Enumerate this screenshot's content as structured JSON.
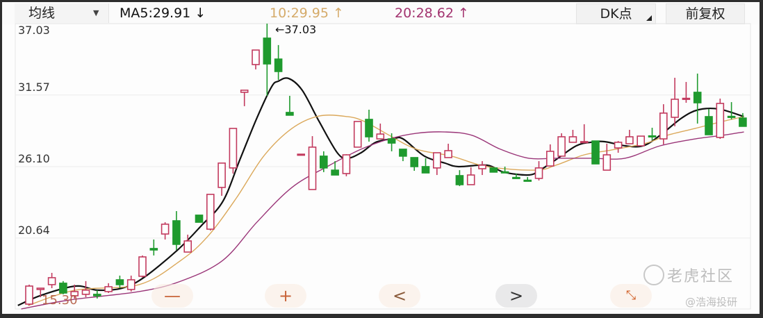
{
  "header": {
    "ma_select_label": "均线",
    "ma5": "MA5:29.91 ↓",
    "ma10": "10:29.95 ↑",
    "ma20": "20:28.62 ↑",
    "dk_button": "DK点",
    "adjust_button": "前复权"
  },
  "colors": {
    "up": "#c23a5e",
    "down": "#1f9a2e",
    "ma5": "#111111",
    "ma10": "#dba85a",
    "ma20": "#9a3578",
    "ma10_text": "#d5ab6a",
    "ma20_text": "#a2336f"
  },
  "controls": {
    "zoom_out": "—",
    "zoom_in": "+",
    "prev": "<",
    "next": ">",
    "expand_icon": "expand-arrows"
  },
  "watermark": {
    "brand": "老虎社区",
    "author": "@浩海投研"
  },
  "chart_data": {
    "type": "candlestick",
    "ylim": [
      15.22,
      37.03
    ],
    "y_ticks": [
      "37.03",
      "31.57",
      "26.10",
      "20.64"
    ],
    "grid": true,
    "high_annotation": "←37.03",
    "low_annotation": "15.30",
    "candles": [
      [
        15.59,
        17.08,
        15.49,
        16.97
      ],
      [
        16.71,
        16.81,
        16.12,
        16.81
      ],
      [
        17.08,
        17.98,
        16.81,
        17.61
      ],
      [
        17.19,
        17.35,
        16.34,
        16.44
      ],
      [
        16.23,
        17.08,
        16.02,
        16.55
      ],
      [
        16.34,
        17.35,
        16.12,
        16.66
      ],
      [
        16.34,
        16.66,
        16.02,
        16.23
      ],
      [
        16.55,
        17.19,
        16.44,
        16.92
      ],
      [
        17.45,
        17.77,
        16.81,
        17.08
      ],
      [
        16.71,
        17.77,
        16.55,
        17.45
      ],
      [
        17.72,
        19.31,
        17.61,
        19.2
      ],
      [
        19.84,
        20.53,
        19.31,
        19.73
      ],
      [
        20.95,
        21.85,
        20.53,
        21.7
      ],
      [
        21.96,
        22.7,
        19.73,
        20.16
      ],
      [
        19.57,
        20.9,
        19.57,
        20.42
      ],
      [
        22.39,
        22.39,
        21.85,
        21.85
      ],
      [
        21.32,
        23.98,
        21.22,
        23.98
      ],
      [
        24.51,
        26.37,
        23.87,
        26.37
      ],
      [
        26.0,
        29.02,
        25.57,
        29.02
      ],
      [
        31.78,
        31.94,
        30.72,
        31.94
      ],
      [
        33.9,
        35.01,
        33.53,
        35.01
      ],
      [
        35.92,
        37.03,
        31.51,
        33.95
      ],
      [
        34.32,
        35.39,
        32.73,
        33.37
      ],
      [
        30.24,
        31.51,
        30.03,
        30.03
      ],
      [
        27.0,
        27.05,
        27.0,
        27.05
      ],
      [
        24.35,
        28.43,
        24.35,
        27.59
      ],
      [
        26.9,
        27.27,
        25.68,
        26.0
      ],
      [
        25.83,
        26.52,
        25.46,
        25.46
      ],
      [
        25.57,
        27.05,
        25.36,
        27.0
      ],
      [
        27.59,
        29.55,
        27.59,
        29.55
      ],
      [
        29.71,
        30.45,
        28.01,
        28.38
      ],
      [
        28.22,
        29.39,
        28.22,
        28.59
      ],
      [
        28.22,
        28.65,
        27.27,
        27.9
      ],
      [
        27.43,
        27.43,
        26.52,
        26.9
      ],
      [
        26.79,
        26.79,
        25.78,
        26.1
      ],
      [
        26.1,
        26.74,
        25.62,
        25.62
      ],
      [
        26.0,
        27.16,
        25.46,
        27.16
      ],
      [
        26.79,
        27.85,
        26.79,
        27.32
      ],
      [
        25.41,
        25.83,
        24.61,
        24.72
      ],
      [
        24.72,
        26.05,
        24.72,
        25.46
      ],
      [
        25.94,
        26.52,
        25.46,
        26.21
      ],
      [
        26.0,
        26.0,
        25.68,
        25.68
      ],
      [
        25.7,
        26.1,
        25.66,
        25.66
      ],
      [
        25.27,
        25.57,
        25.23,
        25.23
      ],
      [
        25.06,
        25.3,
        25.02,
        25.02
      ],
      [
        25.2,
        26.52,
        25.04,
        26.0
      ],
      [
        26.15,
        27.8,
        26.15,
        27.27
      ],
      [
        26.9,
        28.65,
        26.9,
        28.38
      ],
      [
        27.96,
        28.91,
        27.96,
        28.38
      ],
      [
        27.96,
        29.34,
        27.96,
        28.01
      ],
      [
        28.06,
        28.06,
        26.31,
        26.31
      ],
      [
        25.83,
        27.85,
        25.83,
        27.0
      ],
      [
        27.53,
        28.06,
        27.16,
        27.96
      ],
      [
        27.85,
        28.91,
        27.85,
        28.38
      ],
      [
        27.69,
        28.43,
        27.69,
        28.43
      ],
      [
        28.45,
        29.07,
        28.12,
        28.41
      ],
      [
        28.22,
        30.87,
        27.8,
        30.19
      ],
      [
        29.87,
        32.89,
        29.18,
        31.25
      ],
      [
        31.28,
        32.57,
        30.98,
        31.32
      ],
      [
        31.78,
        33.21,
        29.39,
        30.98
      ],
      [
        29.92,
        30.5,
        28.54,
        28.54
      ],
      [
        28.33,
        31.3,
        28.22,
        30.93
      ],
      [
        29.94,
        31.03,
        29.71,
        29.9
      ],
      [
        29.81,
        30.19,
        29.18,
        29.18
      ]
    ],
    "candle_fields": [
      "open",
      "high",
      "low",
      "close"
    ],
    "series": [
      {
        "name": "MA5",
        "points": [
          [
            -1.0,
            15.49
          ],
          [
            1.1,
            16.28
          ],
          [
            4.1,
            16.97
          ],
          [
            6.0,
            16.66
          ],
          [
            8.2,
            16.81
          ],
          [
            10.1,
            17.61
          ],
          [
            13.1,
            19.73
          ],
          [
            15.2,
            21.59
          ],
          [
            17.1,
            23.45
          ],
          [
            18.6,
            26.63
          ],
          [
            20.1,
            29.81
          ],
          [
            21.4,
            32.2
          ],
          [
            22.0,
            32.63
          ],
          [
            22.9,
            32.84
          ],
          [
            24.1,
            31.94
          ],
          [
            25.6,
            29.55
          ],
          [
            27.2,
            27.16
          ],
          [
            28.1,
            26.74
          ],
          [
            29.3,
            27.16
          ],
          [
            30.6,
            27.96
          ],
          [
            32.1,
            28.22
          ],
          [
            33.0,
            28.22
          ],
          [
            34.9,
            26.9
          ],
          [
            36.7,
            26.37
          ],
          [
            37.9,
            26.1
          ],
          [
            40.4,
            26.21
          ],
          [
            41.9,
            25.68
          ],
          [
            44.1,
            25.46
          ],
          [
            45.1,
            25.83
          ],
          [
            46.5,
            26.63
          ],
          [
            48.3,
            27.69
          ],
          [
            49.6,
            27.96
          ],
          [
            50.8,
            28.01
          ],
          [
            52.6,
            27.69
          ],
          [
            54.2,
            27.69
          ],
          [
            55.7,
            28.49
          ],
          [
            57.6,
            29.81
          ],
          [
            59.1,
            30.45
          ],
          [
            60.9,
            30.5
          ],
          [
            63.1,
            29.92
          ]
        ]
      },
      {
        "name": "MA10",
        "points": [
          [
            -0.1,
            15.49
          ],
          [
            4.1,
            16.66
          ],
          [
            9.7,
            17.08
          ],
          [
            13.4,
            18.94
          ],
          [
            15.8,
            20.8
          ],
          [
            18.3,
            23.71
          ],
          [
            20.7,
            26.9
          ],
          [
            23.2,
            29.02
          ],
          [
            25.6,
            29.97
          ],
          [
            28.1,
            29.92
          ],
          [
            29.6,
            29.55
          ],
          [
            31.8,
            28.49
          ],
          [
            34.2,
            27.43
          ],
          [
            37.3,
            26.9
          ],
          [
            40.4,
            26.1
          ],
          [
            44.7,
            25.83
          ],
          [
            46.5,
            26.21
          ],
          [
            49.0,
            27.0
          ],
          [
            51.4,
            27.37
          ],
          [
            54.5,
            27.9
          ],
          [
            56.3,
            28.49
          ],
          [
            58.8,
            29.02
          ],
          [
            61.2,
            29.55
          ],
          [
            63.1,
            29.92
          ]
        ]
      },
      {
        "name": "MA20",
        "points": [
          [
            -0.7,
            15.22
          ],
          [
            3.6,
            15.91
          ],
          [
            9.7,
            16.55
          ],
          [
            13.4,
            17.35
          ],
          [
            17.1,
            18.94
          ],
          [
            20.1,
            21.85
          ],
          [
            23.2,
            24.51
          ],
          [
            26.3,
            26.1
          ],
          [
            29.3,
            27.43
          ],
          [
            31.8,
            28.22
          ],
          [
            34.2,
            28.65
          ],
          [
            36.7,
            28.75
          ],
          [
            39.1,
            28.49
          ],
          [
            41.6,
            27.43
          ],
          [
            44.1,
            26.74
          ],
          [
            46.5,
            26.74
          ],
          [
            49.6,
            26.74
          ],
          [
            52.6,
            26.74
          ],
          [
            55.7,
            27.69
          ],
          [
            58.8,
            28.22
          ],
          [
            61.2,
            28.49
          ],
          [
            63.1,
            28.75
          ]
        ]
      }
    ]
  }
}
